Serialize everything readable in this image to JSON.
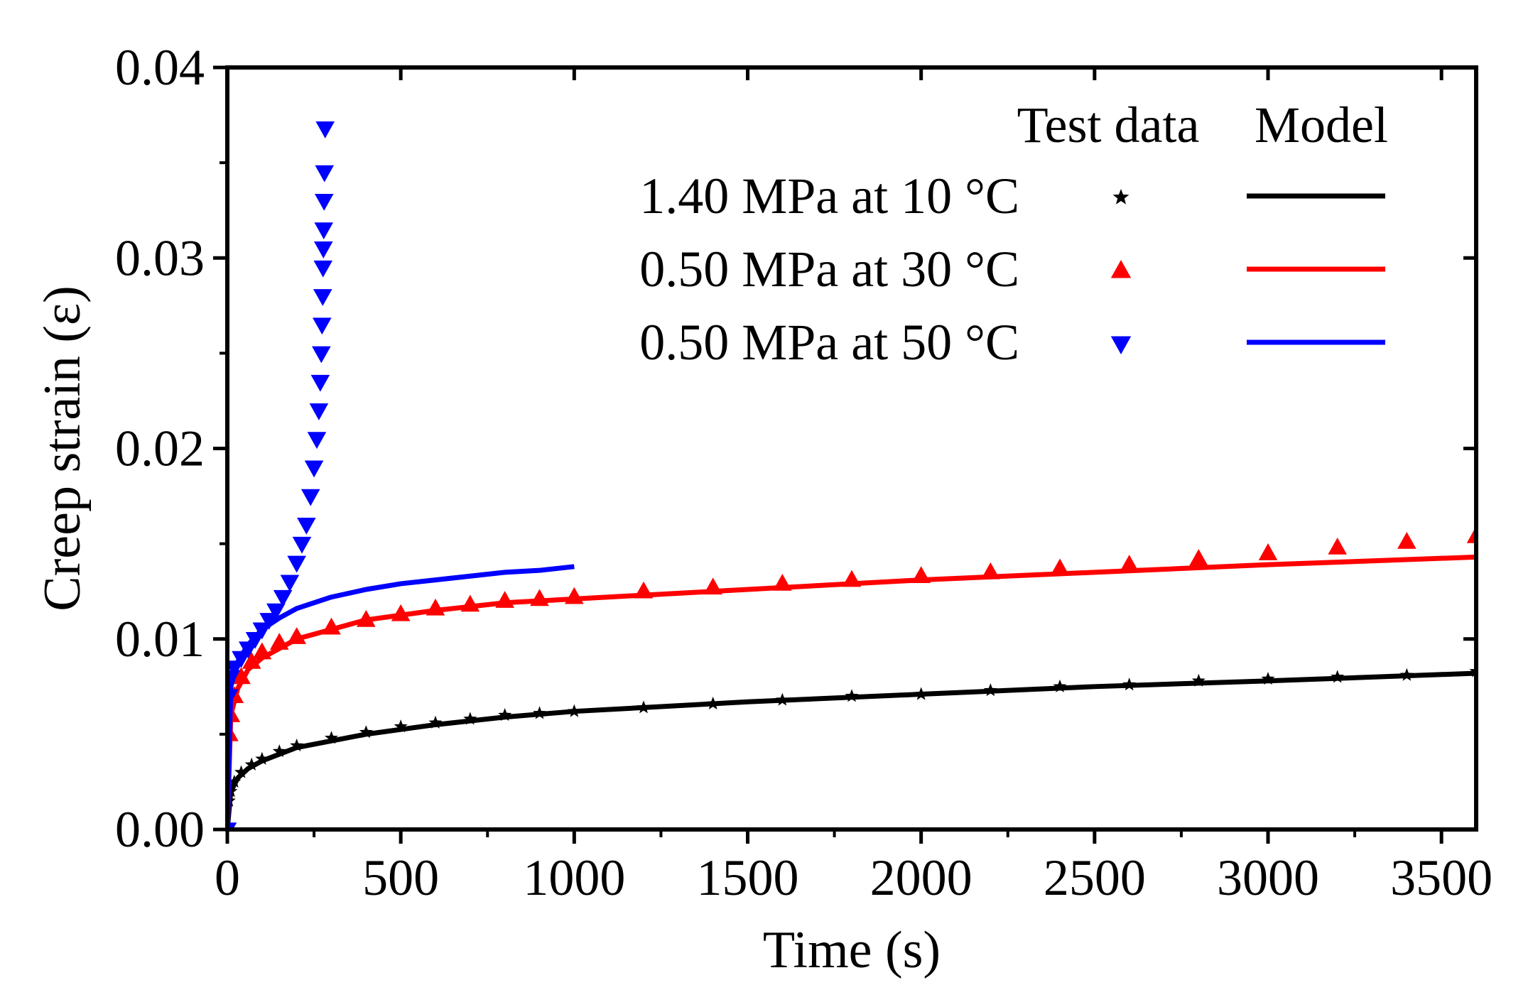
{
  "chart_data": {
    "type": "scatter",
    "title": "",
    "xlabel": "Time (s)",
    "ylabel": "Creep strain (ε)",
    "xlim": [
      0,
      3600
    ],
    "ylim": [
      0,
      0.04
    ],
    "x_ticks": [
      0,
      500,
      1000,
      1500,
      2000,
      2500,
      3000,
      3500
    ],
    "x_tick_labels": [
      "0",
      "500",
      "1000",
      "1500",
      "2000",
      "2500",
      "3000",
      "3500"
    ],
    "y_ticks": [
      0,
      0.01,
      0.02,
      0.03,
      0.04
    ],
    "y_tick_labels": [
      "0.00",
      "0.01",
      "0.02",
      "0.03",
      "0.04"
    ],
    "grid": false,
    "legend": {
      "placement": "top-right",
      "header_test": "Test data",
      "header_model": "Model"
    },
    "series": [
      {
        "name": "1.40 MPa at 10 °C",
        "color": "#000000",
        "marker": "star",
        "test_data": [
          [
            0,
            0.0
          ],
          [
            5,
            0.0015
          ],
          [
            10,
            0.002
          ],
          [
            20,
            0.0025
          ],
          [
            40,
            0.003
          ],
          [
            70,
            0.0034
          ],
          [
            100,
            0.0037
          ],
          [
            150,
            0.0041
          ],
          [
            200,
            0.0044
          ],
          [
            300,
            0.0048
          ],
          [
            400,
            0.0051
          ],
          [
            500,
            0.0054
          ],
          [
            600,
            0.0056
          ],
          [
            700,
            0.0058
          ],
          [
            800,
            0.006
          ],
          [
            900,
            0.0061
          ],
          [
            1000,
            0.0062
          ],
          [
            1200,
            0.0064
          ],
          [
            1400,
            0.0066
          ],
          [
            1600,
            0.0068
          ],
          [
            1800,
            0.007
          ],
          [
            2000,
            0.0071
          ],
          [
            2200,
            0.0073
          ],
          [
            2400,
            0.0075
          ],
          [
            2600,
            0.0076
          ],
          [
            2800,
            0.0078
          ],
          [
            3000,
            0.0079
          ],
          [
            3200,
            0.008
          ],
          [
            3400,
            0.0081
          ],
          [
            3600,
            0.0083
          ]
        ],
        "model": [
          [
            0,
            0.0
          ],
          [
            10,
            0.002
          ],
          [
            30,
            0.0027
          ],
          [
            60,
            0.0032
          ],
          [
            100,
            0.0036
          ],
          [
            200,
            0.0043
          ],
          [
            400,
            0.005
          ],
          [
            600,
            0.0055
          ],
          [
            800,
            0.0059
          ],
          [
            1000,
            0.0062
          ],
          [
            1500,
            0.0067
          ],
          [
            2000,
            0.0071
          ],
          [
            2500,
            0.0075
          ],
          [
            3000,
            0.0078
          ],
          [
            3600,
            0.0082
          ]
        ]
      },
      {
        "name": "0.50 MPa at 30 °C",
        "color": "#ff0000",
        "marker": "triangle-up",
        "test_data": [
          [
            0,
            0.0
          ],
          [
            5,
            0.005
          ],
          [
            10,
            0.006
          ],
          [
            20,
            0.007
          ],
          [
            40,
            0.008
          ],
          [
            70,
            0.0088
          ],
          [
            100,
            0.0093
          ],
          [
            150,
            0.0098
          ],
          [
            200,
            0.0101
          ],
          [
            300,
            0.0106
          ],
          [
            400,
            0.011
          ],
          [
            500,
            0.0113
          ],
          [
            600,
            0.0116
          ],
          [
            700,
            0.0118
          ],
          [
            800,
            0.012
          ],
          [
            900,
            0.0121
          ],
          [
            1000,
            0.0122
          ],
          [
            1200,
            0.0125
          ],
          [
            1400,
            0.0127
          ],
          [
            1600,
            0.0129
          ],
          [
            1800,
            0.0131
          ],
          [
            2000,
            0.0133
          ],
          [
            2200,
            0.0135
          ],
          [
            2400,
            0.0137
          ],
          [
            2600,
            0.0139
          ],
          [
            2800,
            0.0142
          ],
          [
            3000,
            0.0145
          ],
          [
            3200,
            0.0148
          ],
          [
            3400,
            0.0151
          ],
          [
            3600,
            0.0154
          ]
        ],
        "model": [
          [
            0,
            0.0
          ],
          [
            10,
            0.006
          ],
          [
            30,
            0.0074
          ],
          [
            60,
            0.0084
          ],
          [
            100,
            0.009
          ],
          [
            200,
            0.01
          ],
          [
            400,
            0.011
          ],
          [
            600,
            0.0115
          ],
          [
            800,
            0.0119
          ],
          [
            1000,
            0.0121
          ],
          [
            1500,
            0.0126
          ],
          [
            2000,
            0.0131
          ],
          [
            2500,
            0.0135
          ],
          [
            3000,
            0.0139
          ],
          [
            3600,
            0.0143
          ]
        ]
      },
      {
        "name": "0.50 MPa at 50 °C",
        "color": "#0000ff",
        "marker": "triangle-down",
        "test_data": [
          [
            0,
            0.0
          ],
          [
            5,
            0.007
          ],
          [
            10,
            0.008
          ],
          [
            20,
            0.0085
          ],
          [
            40,
            0.009
          ],
          [
            60,
            0.0095
          ],
          [
            80,
            0.01
          ],
          [
            100,
            0.0105
          ],
          [
            120,
            0.011
          ],
          [
            140,
            0.0115
          ],
          [
            160,
            0.0122
          ],
          [
            180,
            0.013
          ],
          [
            200,
            0.014
          ],
          [
            215,
            0.015
          ],
          [
            228,
            0.016
          ],
          [
            240,
            0.0175
          ],
          [
            250,
            0.019
          ],
          [
            258,
            0.0205
          ],
          [
            264,
            0.022
          ],
          [
            268,
            0.0235
          ],
          [
            271,
            0.025
          ],
          [
            273,
            0.0265
          ],
          [
            275,
            0.028
          ],
          [
            276,
            0.0295
          ],
          [
            277,
            0.0305
          ],
          [
            278,
            0.0315
          ],
          [
            279,
            0.033
          ],
          [
            280,
            0.0345
          ],
          [
            282,
            0.0368
          ]
        ],
        "model": [
          [
            0,
            0.0
          ],
          [
            10,
            0.0075
          ],
          [
            30,
            0.0088
          ],
          [
            60,
            0.0097
          ],
          [
            100,
            0.0105
          ],
          [
            150,
            0.0111
          ],
          [
            200,
            0.0116
          ],
          [
            300,
            0.0122
          ],
          [
            400,
            0.0126
          ],
          [
            500,
            0.0129
          ],
          [
            600,
            0.0131
          ],
          [
            700,
            0.0133
          ],
          [
            800,
            0.0135
          ],
          [
            900,
            0.0136
          ],
          [
            1000,
            0.0138
          ]
        ]
      }
    ]
  }
}
